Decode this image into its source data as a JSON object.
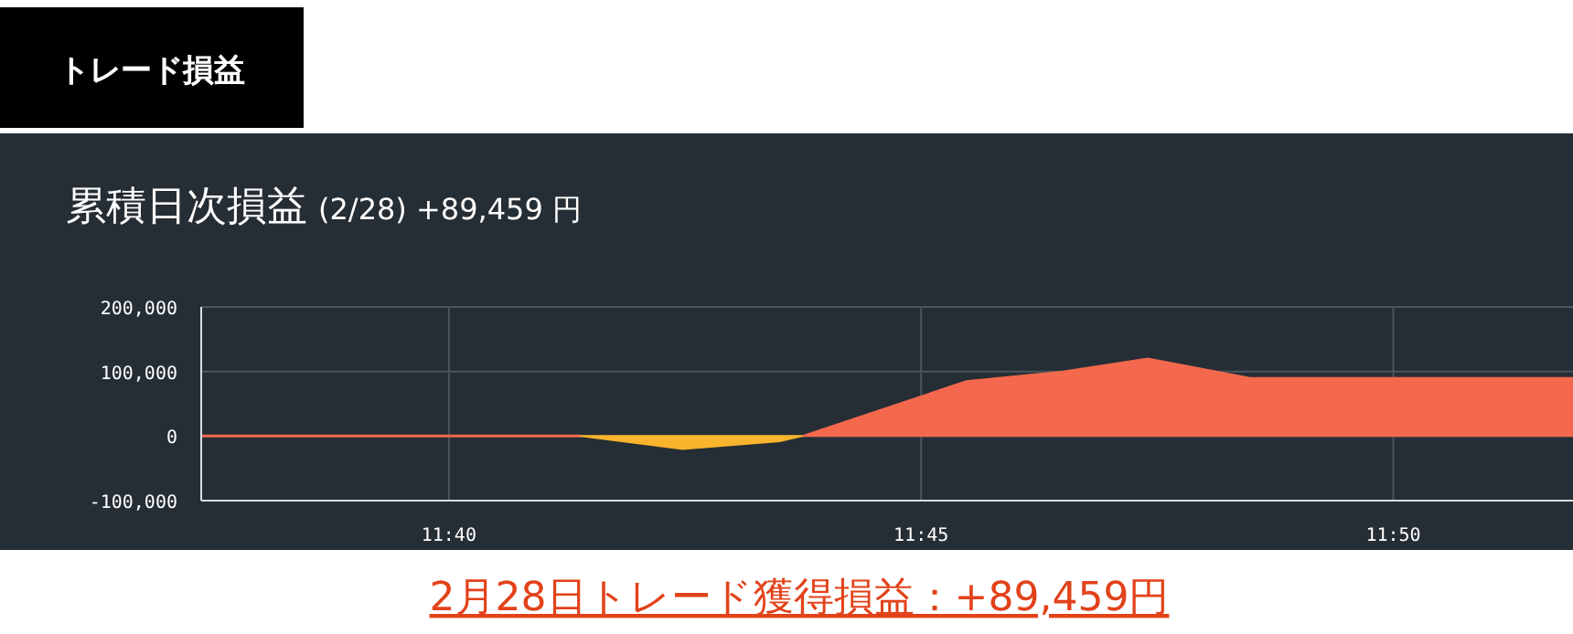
{
  "chart_data": {
    "type": "area",
    "title": "累積日次損益",
    "subtitle": "(2/28) +89,459 円",
    "annotations": [
      "トレード損益",
      "2月28日トレード獲得損益：+89,459円"
    ],
    "series": [
      {
        "type": "line",
        "color": "#f4694d",
        "x": [
          11.623,
          11.69
        ],
        "values": [
          0,
          0
        ]
      },
      {
        "color": "#f4694d",
        "x": [
          11.729,
          11.758,
          11.775,
          11.79,
          11.808,
          11.865
        ],
        "values": [
          0,
          85000,
          100000,
          120000,
          90000,
          90000
        ]
      },
      {
        "color": "#f9b42d",
        "x": [
          11.69,
          11.708,
          11.725,
          11.729
        ],
        "values": [
          0,
          -20000,
          -8000,
          0
        ]
      }
    ],
    "xlim": [
      11.623,
      11.865
    ],
    "xticks": [
      {
        "value": 11.6667,
        "label": "11:40"
      },
      {
        "value": 11.75,
        "label": "11:45"
      },
      {
        "value": 11.8333,
        "label": "11:50"
      }
    ],
    "ylim": [
      -100000,
      200000
    ],
    "yticks": [
      {
        "value": -100000,
        "label": "-100,000"
      },
      {
        "value": 0,
        "label": "0"
      },
      {
        "value": 100000,
        "label": "100,000"
      },
      {
        "value": 200000,
        "label": "200,000"
      }
    ],
    "grid": true
  }
}
